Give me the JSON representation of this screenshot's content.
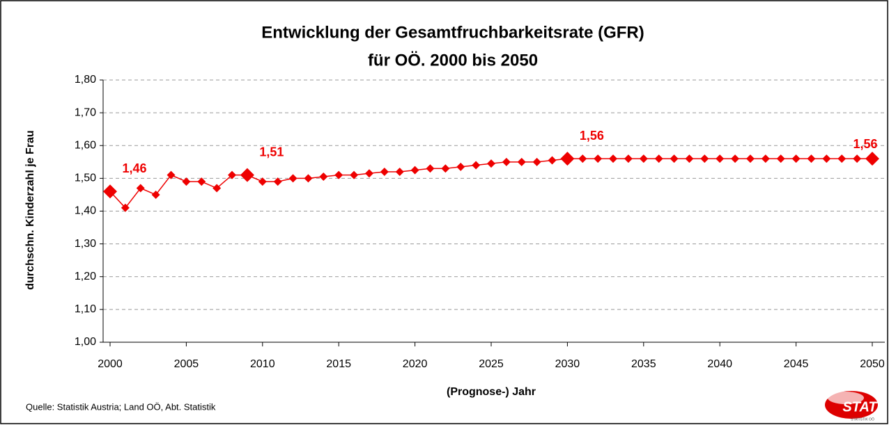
{
  "chart_data": {
    "type": "line",
    "title": "Entwicklung der Gesamtfruchbarkeitsrate (GFR)",
    "subtitle": "für OÖ. 2000 bis 2050",
    "y_label": "durchschn. Kinderzahl je Frau",
    "x_label": "(Prognose-) Jahr",
    "source": "Quelle: Statistik Austria; Land OÖ, Abt. Statistik",
    "logo": {
      "text": "STAT",
      "subtext": "STATISTIK OÖ"
    },
    "color": "#ee0000",
    "grid": true,
    "x": [
      2000,
      2001,
      2002,
      2003,
      2004,
      2005,
      2006,
      2007,
      2008,
      2009,
      2010,
      2011,
      2012,
      2013,
      2014,
      2015,
      2016,
      2017,
      2018,
      2019,
      2020,
      2021,
      2022,
      2023,
      2024,
      2025,
      2026,
      2027,
      2028,
      2029,
      2030,
      2031,
      2032,
      2033,
      2034,
      2035,
      2036,
      2037,
      2038,
      2039,
      2040,
      2041,
      2042,
      2043,
      2044,
      2045,
      2046,
      2047,
      2048,
      2049,
      2050
    ],
    "values": [
      1.46,
      1.41,
      1.47,
      1.45,
      1.51,
      1.49,
      1.49,
      1.47,
      1.51,
      1.51,
      1.49,
      1.49,
      1.5,
      1.5,
      1.505,
      1.51,
      1.51,
      1.515,
      1.52,
      1.52,
      1.525,
      1.53,
      1.53,
      1.535,
      1.54,
      1.545,
      1.55,
      1.55,
      1.55,
      1.555,
      1.56,
      1.56,
      1.56,
      1.56,
      1.56,
      1.56,
      1.56,
      1.56,
      1.56,
      1.56,
      1.56,
      1.56,
      1.56,
      1.56,
      1.56,
      1.56,
      1.56,
      1.56,
      1.56,
      1.56,
      1.56
    ],
    "value_labels": [
      "1,46",
      null,
      null,
      null,
      null,
      null,
      null,
      null,
      null,
      "1,51",
      null,
      null,
      null,
      null,
      null,
      null,
      null,
      null,
      null,
      null,
      null,
      null,
      null,
      null,
      null,
      null,
      null,
      null,
      null,
      null,
      "1,56",
      null,
      null,
      null,
      null,
      null,
      null,
      null,
      null,
      null,
      null,
      null,
      null,
      null,
      null,
      null,
      null,
      null,
      null,
      null,
      "1,56"
    ],
    "xlim": [
      2000,
      2050
    ],
    "xticks": [
      2000,
      2005,
      2010,
      2015,
      2020,
      2025,
      2030,
      2035,
      2040,
      2045,
      2050
    ],
    "ylim": [
      1.0,
      1.8
    ],
    "yticks": [
      {
        "value": 1.0,
        "label": "1,00"
      },
      {
        "value": 1.1,
        "label": "1,10"
      },
      {
        "value": 1.2,
        "label": "1,20"
      },
      {
        "value": 1.3,
        "label": "1,30"
      },
      {
        "value": 1.4,
        "label": "1,40"
      },
      {
        "value": 1.5,
        "label": "1,50"
      },
      {
        "value": 1.6,
        "label": "1,60"
      },
      {
        "value": 1.7,
        "label": "1,70"
      },
      {
        "value": 1.8,
        "label": "1,80"
      }
    ]
  }
}
